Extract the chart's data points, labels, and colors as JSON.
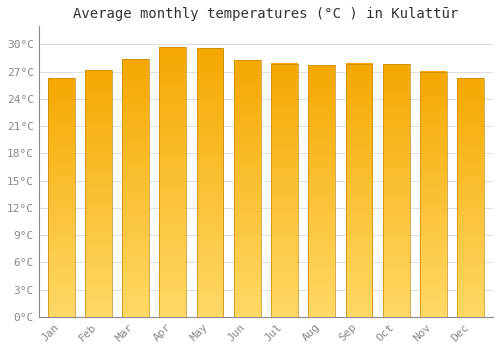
{
  "title": "Average monthly temperatures (°C ) in Kulattūr",
  "months": [
    "Jan",
    "Feb",
    "Mar",
    "Apr",
    "May",
    "Jun",
    "Jul",
    "Aug",
    "Sep",
    "Oct",
    "Nov",
    "Dec"
  ],
  "temperatures": [
    26.3,
    27.2,
    28.4,
    29.7,
    29.6,
    28.3,
    27.9,
    27.7,
    27.9,
    27.8,
    27.0,
    26.3
  ],
  "bar_color_orange": "#F5A800",
  "bar_color_yellow": "#FFD966",
  "bar_edge_color": "#C8880A",
  "background_color": "#FFFFFF",
  "grid_color": "#DDDDDD",
  "yticks": [
    0,
    3,
    6,
    9,
    12,
    15,
    18,
    21,
    24,
    27,
    30
  ],
  "ytick_labels": [
    "0°C",
    "3°C",
    "6°C",
    "9°C",
    "12°C",
    "15°C",
    "18°C",
    "21°C",
    "24°C",
    "27°C",
    "30°C"
  ],
  "ylim": [
    0,
    32
  ],
  "title_fontsize": 10,
  "tick_fontsize": 8,
  "tick_color": "#888888"
}
